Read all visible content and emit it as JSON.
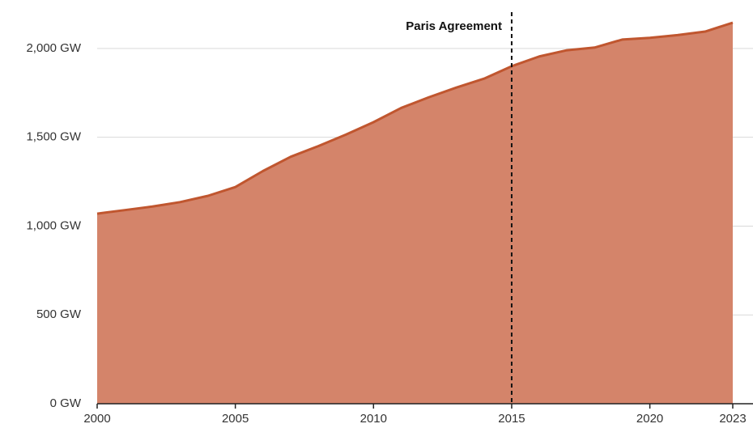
{
  "chart_data": {
    "type": "area",
    "x": [
      2000,
      2001,
      2002,
      2003,
      2004,
      2005,
      2006,
      2007,
      2008,
      2009,
      2010,
      2011,
      2012,
      2013,
      2014,
      2015,
      2016,
      2017,
      2018,
      2019,
      2020,
      2021,
      2022,
      2023
    ],
    "values": [
      1070,
      1090,
      1110,
      1135,
      1170,
      1220,
      1310,
      1390,
      1450,
      1515,
      1585,
      1665,
      1725,
      1780,
      1830,
      1900,
      1955,
      1990,
      2005,
      2050,
      2060,
      2075,
      2095,
      2145
    ],
    "color": "#d4846a",
    "line_color": "#c0562f",
    "xlim": [
      2000,
      2023
    ],
    "xticks": [
      2000,
      2005,
      2010,
      2015,
      2020,
      2023
    ],
    "ylim": [
      0,
      2250
    ],
    "yticks": [
      {
        "value": 0,
        "label": "0 GW"
      },
      {
        "value": 500,
        "label": "500 GW"
      },
      {
        "value": 1000,
        "label": "1,000 GW"
      },
      {
        "value": 1500,
        "label": "1,500 GW"
      },
      {
        "value": 2000,
        "label": "2,000 GW"
      }
    ],
    "grid": true,
    "annotations": [
      {
        "x": 2015,
        "label": "Paris Agreement"
      }
    ]
  }
}
